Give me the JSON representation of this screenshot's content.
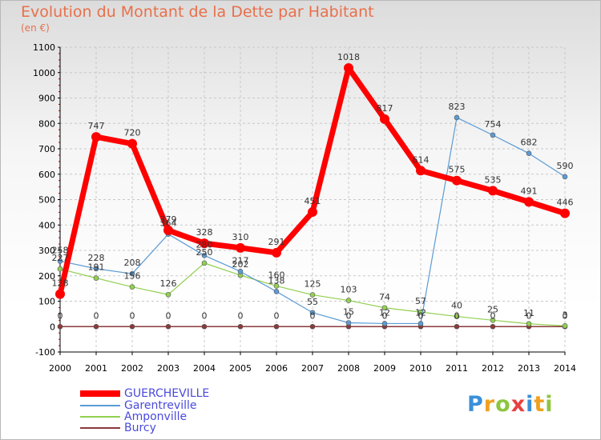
{
  "header": {
    "title": "Evolution du Montant de la Dette par Habitant",
    "subtitle": "(en €)"
  },
  "logo": {
    "text": "Proxiti",
    "colors": [
      "#3a8fd8",
      "#f0a020",
      "#8cc63f",
      "#e84040"
    ]
  },
  "colors": {
    "GUERCHEVILLE": "#ff0000",
    "Garentreville": "#5b9bd5",
    "Amponville": "#92d050",
    "Burcy": "#8b3a3a",
    "title": "#e8704a",
    "legend_text": "#4a4adb",
    "axis": "#000000",
    "grid": "#c8c8c8"
  },
  "chart_data": {
    "type": "line",
    "title": "Evolution du Montant de la Dette par Habitant",
    "subtitle": "(en €)",
    "x": [
      "2000",
      "2001",
      "2002",
      "2003",
      "2004",
      "2005",
      "2006",
      "2007",
      "2008",
      "2009",
      "2010",
      "2011",
      "2012",
      "2013",
      "2014"
    ],
    "ylim": [
      -100,
      1100
    ],
    "yticks": [
      -100,
      0,
      100,
      200,
      300,
      400,
      500,
      600,
      700,
      800,
      900,
      1000,
      1100
    ],
    "grid": "horizontal dashed",
    "legend": "bottom-left",
    "series": [
      {
        "name": "GUERCHEVILLE",
        "values": [
          128,
          747,
          720,
          379,
          328,
          310,
          291,
          451,
          1018,
          817,
          614,
          575,
          535,
          491,
          446
        ],
        "labels": [
          "128",
          "747",
          "720",
          "379",
          "328",
          "310",
          "291",
          "451",
          "1018",
          "817",
          "614",
          "575",
          "535",
          "491",
          "446"
        ]
      },
      {
        "name": "Garentreville",
        "values": [
          258,
          228,
          208,
          364,
          280,
          217,
          138,
          55,
          15,
          12,
          12,
          823,
          754,
          682,
          590
        ],
        "labels": [
          "258",
          "228",
          "208",
          "364",
          "280",
          "217",
          "138",
          "55",
          "15",
          "12",
          "12",
          "823",
          "754",
          "682",
          "590"
        ]
      },
      {
        "name": "Amponville",
        "values": [
          227,
          191,
          156,
          126,
          250,
          202,
          160,
          125,
          103,
          74,
          57,
          40,
          25,
          11,
          3
        ],
        "labels": [
          "227",
          "191",
          "156",
          "126",
          "250",
          "202",
          "160",
          "125",
          "103",
          "74",
          "57",
          "40",
          "25",
          "11",
          "3"
        ]
      },
      {
        "name": "Burcy",
        "values": [
          0,
          0,
          0,
          0,
          0,
          0,
          0,
          0,
          0,
          0,
          0,
          0,
          0,
          0,
          0
        ],
        "labels": [
          "0",
          "0",
          "0",
          "0",
          "0",
          "0",
          "0",
          "0",
          "0",
          "0",
          "0",
          "0",
          "0",
          "0",
          "0"
        ]
      }
    ]
  }
}
